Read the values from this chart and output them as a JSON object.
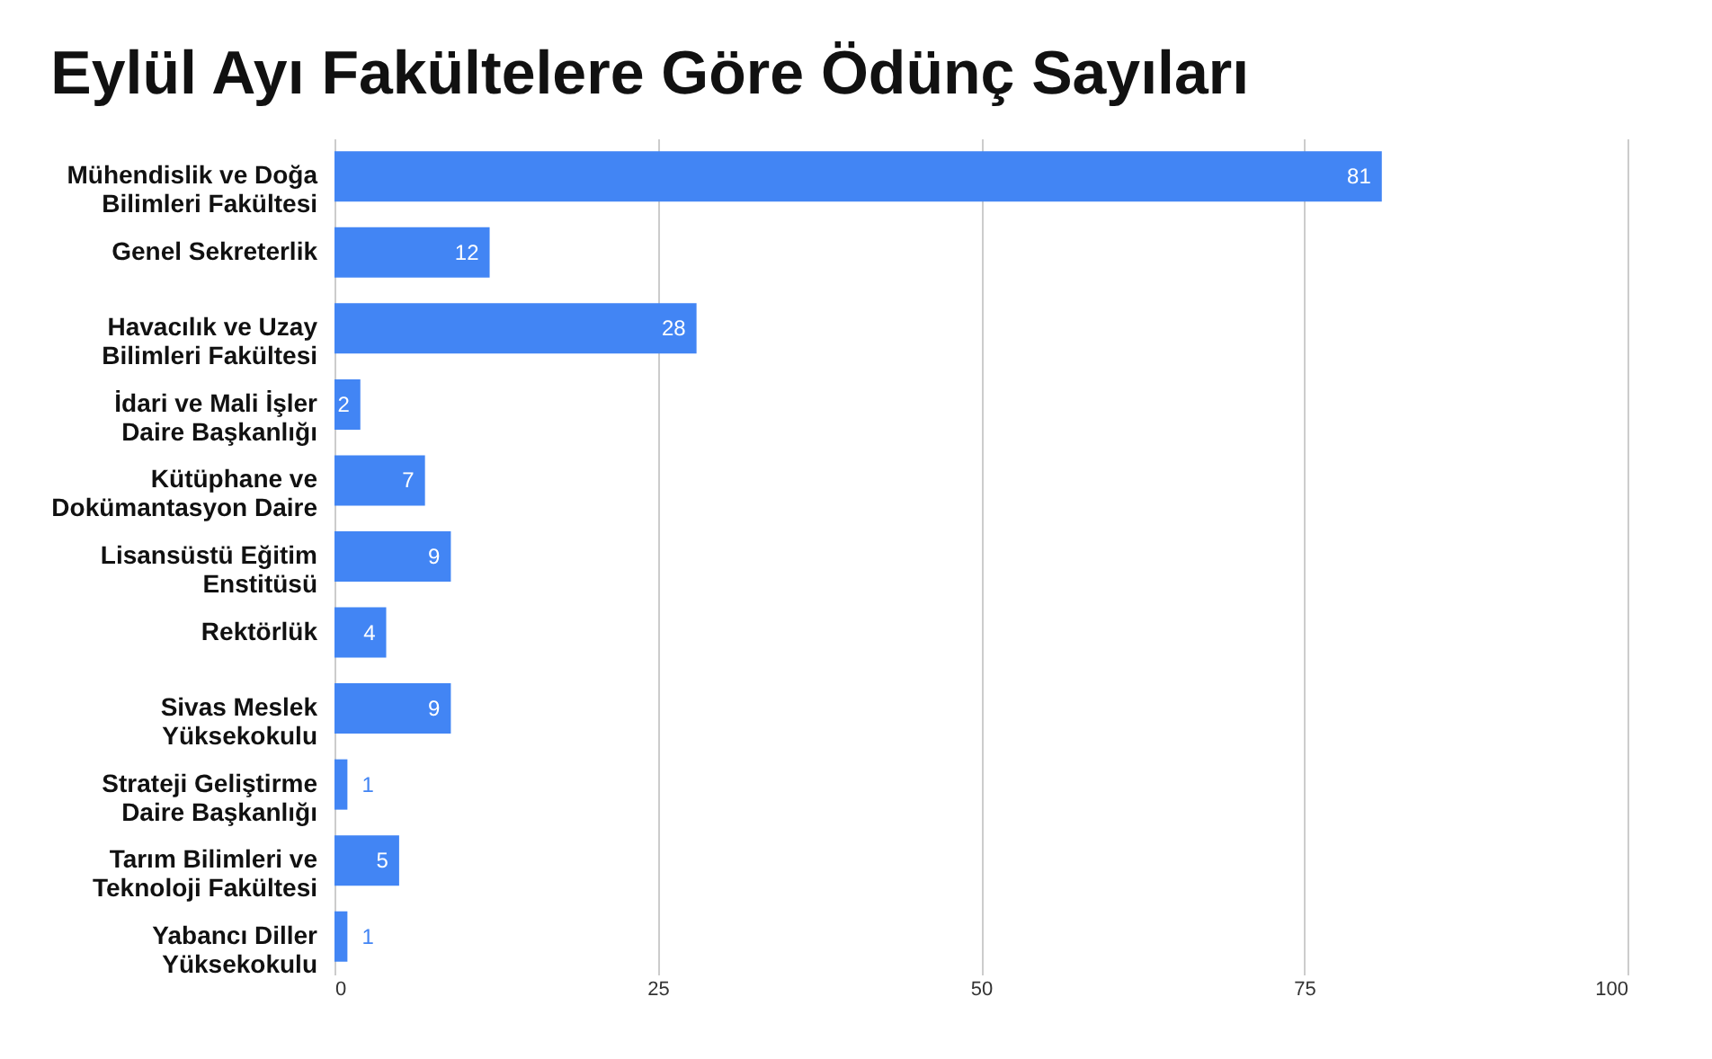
{
  "chart_data": {
    "type": "bar",
    "orientation": "horizontal",
    "title": "Eylül Ayı Fakültelere Göre Ödünç Sayıları",
    "categories": [
      "Mühendislik ve Doğa Bilimleri Fakültesi",
      "Genel Sekreterlik",
      "Havacılık ve Uzay Bilimleri Fakültesi",
      "İdari ve Mali İşler Daire Başkanlığı",
      "Kütüphane ve Dokümantasyon Daire",
      "Lisansüstü Eğitim Enstitüsü",
      "Rektörlük",
      "Sivas Meslek Yüksekokulu",
      "Strateji Geliştirme Daire Başkanlığı",
      "Tarım Bilimleri ve Teknoloji Fakültesi",
      "Yabancı Diller Yüksekokulu"
    ],
    "values": [
      81,
      12,
      28,
      2,
      7,
      9,
      4,
      9,
      1,
      5,
      1
    ],
    "color": "#4285f4",
    "xlim": [
      0,
      100
    ],
    "xticks": [
      0,
      25,
      50,
      75,
      100
    ],
    "grid": "x",
    "data_labels": true
  }
}
